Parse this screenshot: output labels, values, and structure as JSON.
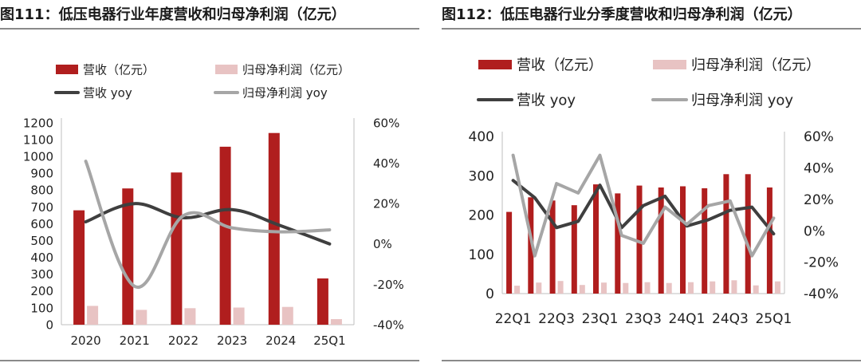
{
  "charts": [
    {
      "title": "图111：低压电器行业年度营收和归母净利润（亿元）",
      "chart_data": {
        "type": "bar",
        "categories": [
          "2020",
          "2021",
          "2022",
          "2023",
          "2024",
          "25Q1"
        ],
        "y_left": {
          "ticks": [
            0,
            100,
            200,
            300,
            400,
            500,
            600,
            700,
            800,
            900,
            1000,
            1100,
            1200
          ],
          "range": [
            0,
            1200
          ]
        },
        "y_right": {
          "ticks": [
            "-40%",
            "-20%",
            "0%",
            "20%",
            "40%",
            "60%"
          ],
          "range": [
            -40,
            60
          ]
        },
        "series": [
          {
            "name": "营收（亿元）",
            "kind": "bar",
            "axis": "left",
            "color": "#b01e1e",
            "values": [
              680,
              810,
              905,
              1058,
              1140,
              275
            ]
          },
          {
            "name": "归母净利润（亿元）",
            "kind": "bar",
            "axis": "left",
            "color": "#e8c3c3",
            "values": [
              112,
              88,
              98,
              102,
              106,
              33
            ]
          },
          {
            "name": "营收 yoy",
            "kind": "line",
            "axis": "right",
            "color": "#3f3f3f",
            "values": [
              11,
              20,
              13,
              17,
              9,
              0
            ]
          },
          {
            "name": "归母净利润 yoy",
            "kind": "line",
            "axis": "right",
            "color": "#a6a6a6",
            "values": [
              41,
              -21,
              14,
              8,
              6,
              7
            ]
          }
        ],
        "grid": false,
        "legend": "top"
      }
    },
    {
      "title": "图112：低压电器行业分季度营收和归母净利润（亿元）",
      "chart_data": {
        "type": "bar",
        "categories": [
          "22Q1",
          "22Q2",
          "22Q3",
          "22Q4",
          "23Q1",
          "23Q2",
          "23Q3",
          "23Q4",
          "24Q1",
          "24Q2",
          "24Q3",
          "24Q4",
          "25Q1"
        ],
        "x_tick_labels": [
          "22Q1",
          "22Q3",
          "23Q1",
          "23Q3",
          "24Q1",
          "24Q3",
          "25Q1"
        ],
        "y_left": {
          "ticks": [
            0,
            100,
            200,
            300,
            400
          ],
          "range": [
            0,
            400
          ]
        },
        "y_right": {
          "ticks": [
            "-40%",
            "-20%",
            "0%",
            "20%",
            "40%",
            "60%"
          ],
          "range": [
            -40,
            60
          ]
        },
        "series": [
          {
            "name": "营收（亿元）",
            "kind": "bar",
            "axis": "left",
            "color": "#b01e1e",
            "values": [
              208,
              245,
              237,
              225,
              278,
              255,
              275,
              270,
              273,
              268,
              304,
              304,
              270
            ]
          },
          {
            "name": "归母净利润（亿元）",
            "kind": "bar",
            "axis": "left",
            "color": "#e8c3c3",
            "values": [
              20,
              28,
              32,
              22,
              28,
              27,
              29,
              27,
              29,
              31,
              34,
              21,
              31
            ]
          },
          {
            "name": "营收 yoy",
            "kind": "line",
            "axis": "right",
            "color": "#3f3f3f",
            "values": [
              32,
              21,
              2,
              6,
              29,
              2,
              16,
              22,
              3,
              7,
              13,
              15,
              -2
            ]
          },
          {
            "name": "归母净利润 yoy",
            "kind": "line",
            "axis": "right",
            "color": "#a6a6a6",
            "values": [
              48,
              -16,
              30,
              24,
              48,
              -3,
              -8,
              15,
              4,
              16,
              19,
              -16,
              8
            ]
          }
        ],
        "grid": false,
        "legend": "top"
      }
    }
  ]
}
